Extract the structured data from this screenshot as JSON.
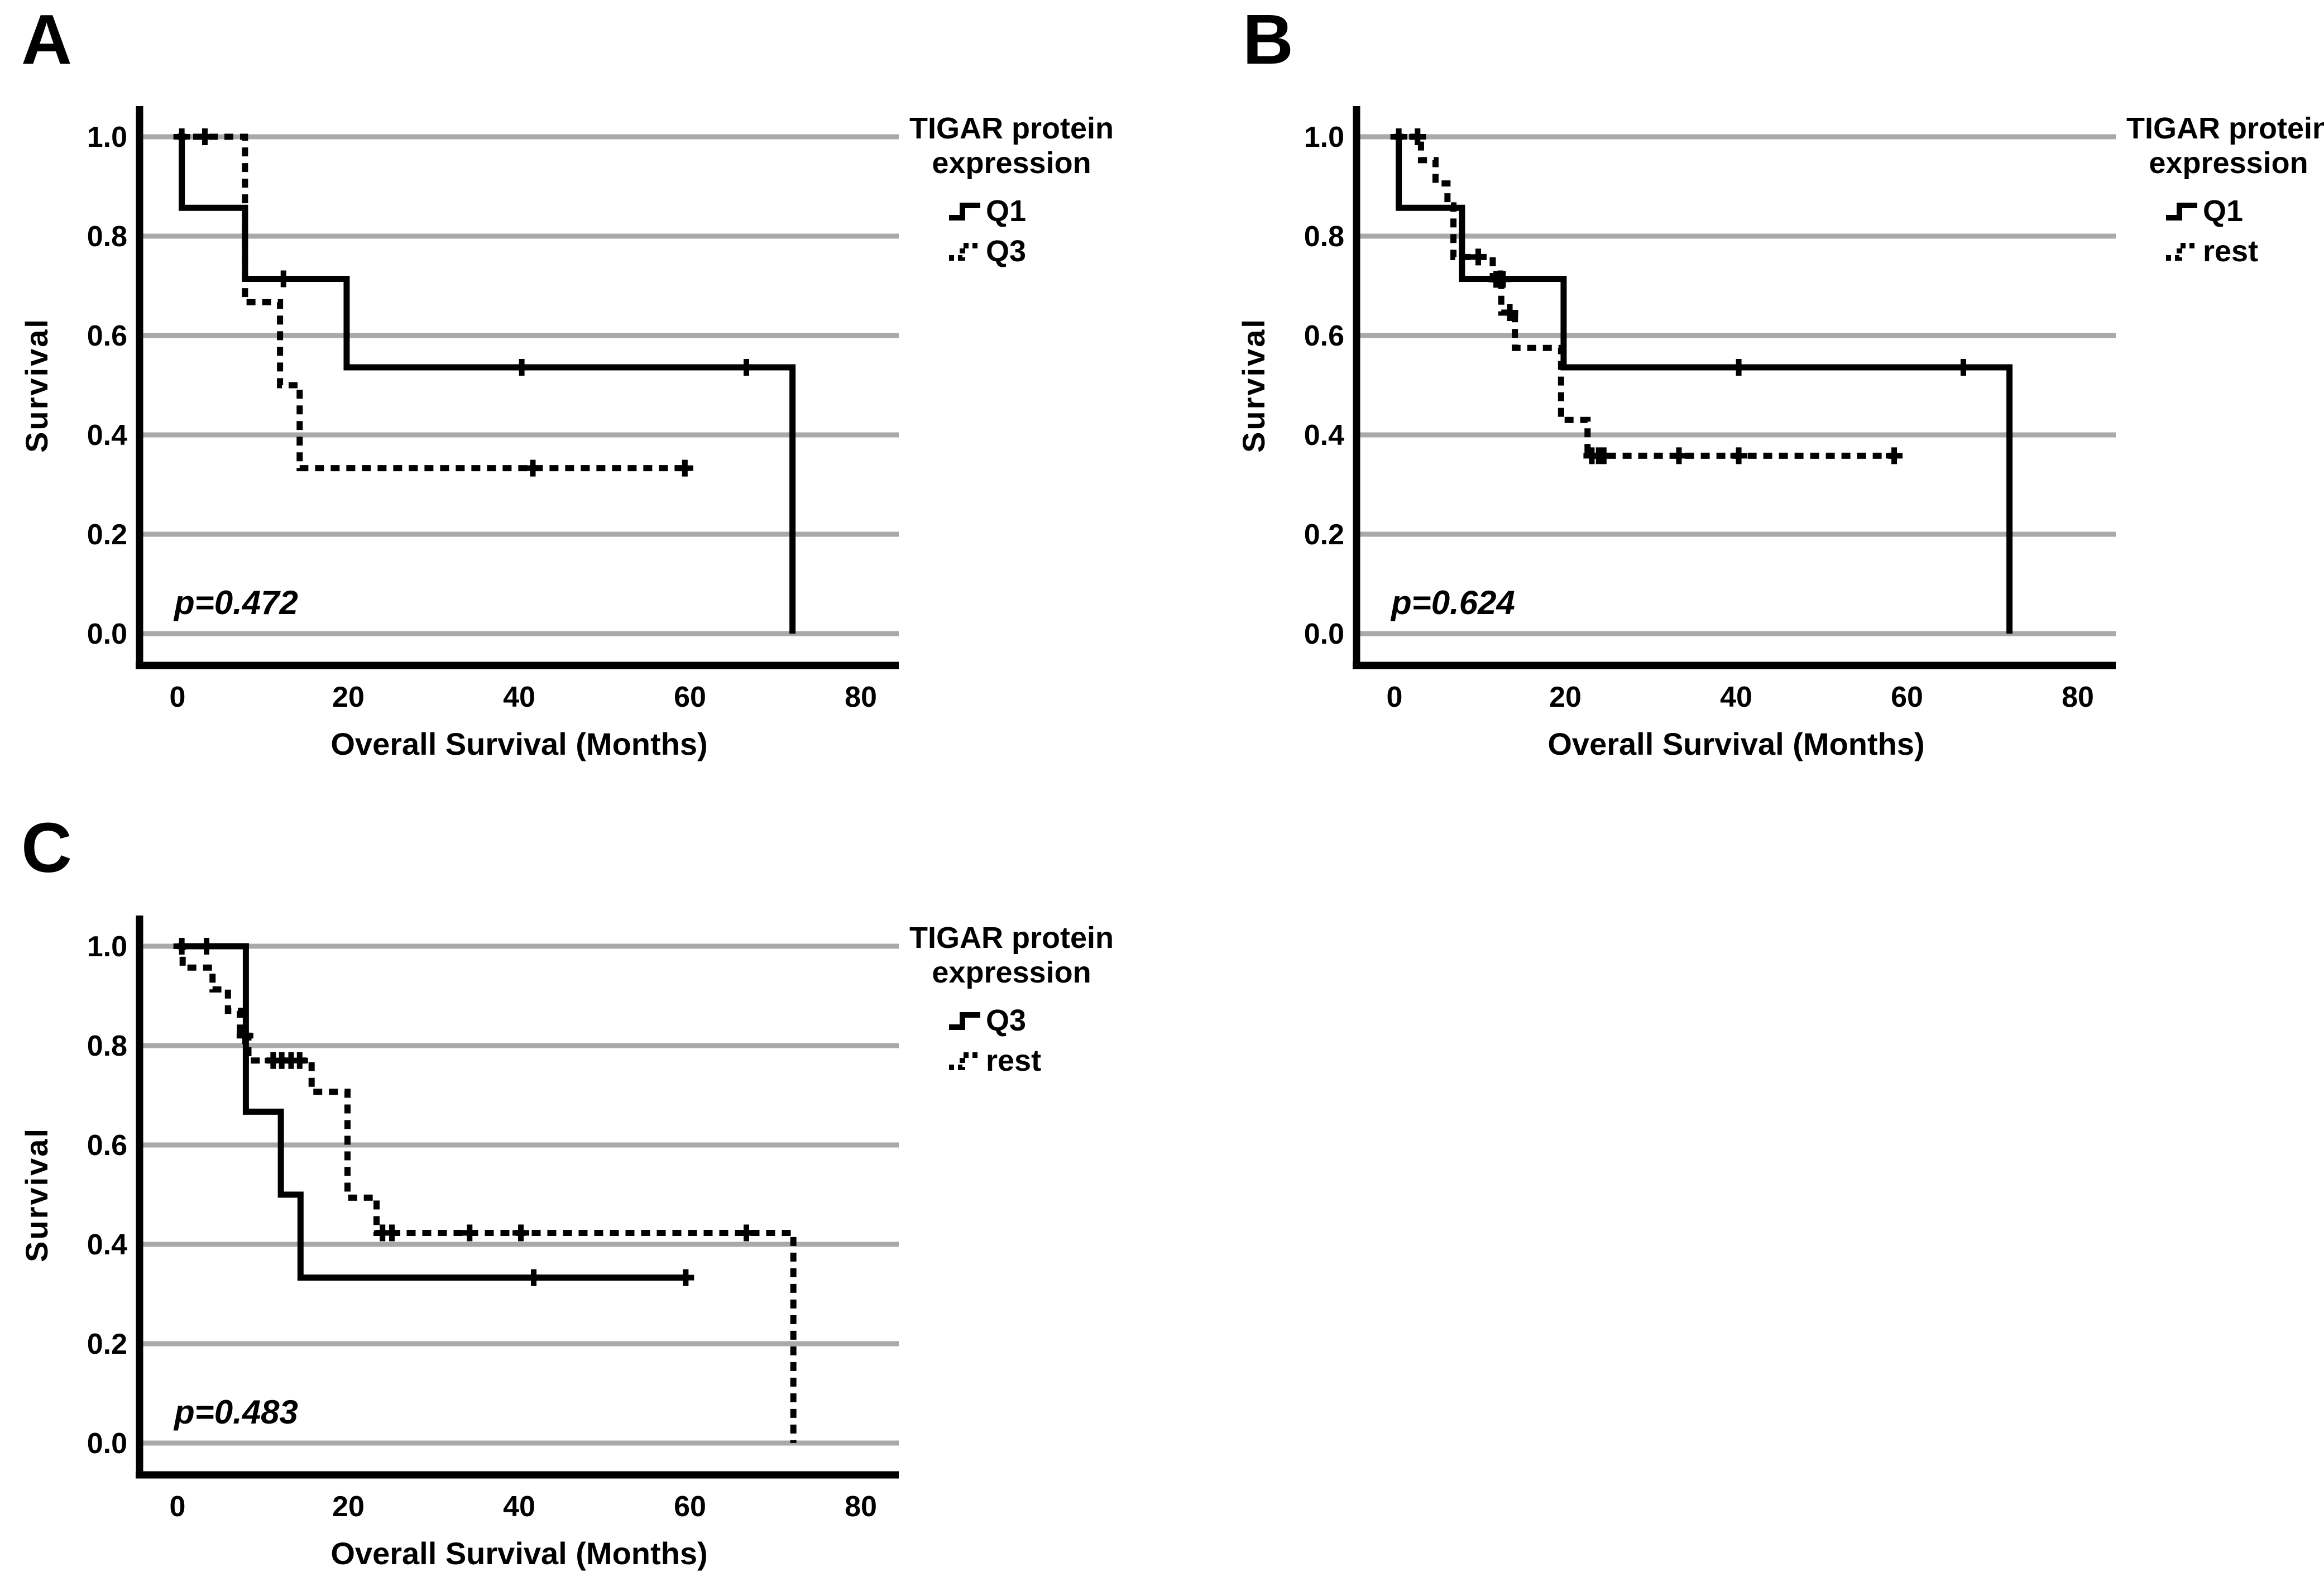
{
  "figure": {
    "background_color": "#ffffff",
    "grid_color": "#a9a9a9",
    "axis_color": "#000000",
    "curve_color": "#000000"
  },
  "chart_data": [
    {
      "panel_letter": "A",
      "type": "line",
      "subtype": "kaplan_meier_step",
      "title": "",
      "xlabel": "Overall Survival (Months)",
      "ylabel": "Survival",
      "x_ticks": [
        "0",
        "20",
        "40",
        "60",
        "80"
      ],
      "y_ticks": [
        "1.0",
        "0.8",
        "0.6",
        "0.4",
        "0.2",
        "0.0"
      ],
      "x_range": [
        0,
        84
      ],
      "y_range": [
        0,
        1
      ],
      "grid": "horizontal",
      "p_value": "p=0.472",
      "legend": {
        "position": "right",
        "title_lines": [
          "TIGAR protein",
          "expression"
        ],
        "items": [
          {
            "label": "Q1",
            "line_style": "solid"
          },
          {
            "label": "Q3",
            "line_style": "dashed"
          }
        ]
      },
      "series": [
        {
          "name": "Q1",
          "line_style": "solid",
          "color": "#000000",
          "steps": [
            [
              0,
              1.0
            ],
            [
              0.5,
              0.857
            ],
            [
              7.9,
              0.714
            ],
            [
              19.8,
              0.536
            ],
            [
              72,
              0.0
            ]
          ],
          "end_time": 72,
          "censors": [
            [
              12.4,
              0.714
            ],
            [
              40.3,
              0.536
            ],
            [
              66.6,
              0.536
            ]
          ]
        },
        {
          "name": "Q3",
          "line_style": "dashed",
          "color": "#000000",
          "steps": [
            [
              0,
              1.0
            ],
            [
              7.9,
              0.667
            ],
            [
              12.0,
              0.5
            ],
            [
              14.3,
              0.333
            ]
          ],
          "end_time": 59.4,
          "censors": [
            [
              0.5,
              1.0
            ],
            [
              3.2,
              1.0
            ],
            [
              41.6,
              0.333
            ],
            [
              59.4,
              0.333
            ]
          ]
        }
      ]
    },
    {
      "panel_letter": "B",
      "type": "line",
      "subtype": "kaplan_meier_step",
      "title": "",
      "xlabel": "Overall Survival (Months)",
      "ylabel": "Survival",
      "x_ticks": [
        "0",
        "20",
        "40",
        "60",
        "80"
      ],
      "y_ticks": [
        "1.0",
        "0.8",
        "0.6",
        "0.4",
        "0.2",
        "0.0"
      ],
      "x_range": [
        0,
        84
      ],
      "y_range": [
        0,
        1
      ],
      "grid": "horizontal",
      "p_value": "p=0.624",
      "legend": {
        "position": "right",
        "title_lines": [
          "TIGAR protein",
          "expression"
        ],
        "items": [
          {
            "label": "Q1",
            "line_style": "solid"
          },
          {
            "label": "rest",
            "line_style": "dashed"
          }
        ]
      },
      "series": [
        {
          "name": "Q1",
          "line_style": "solid",
          "color": "#000000",
          "steps": [
            [
              0,
              1.0
            ],
            [
              0.5,
              0.857
            ],
            [
              7.9,
              0.714
            ],
            [
              19.8,
              0.536
            ],
            [
              72,
              0.0
            ]
          ],
          "end_time": 72,
          "censors": [
            [
              12.4,
              0.714
            ],
            [
              40.3,
              0.536
            ],
            [
              66.6,
              0.536
            ]
          ]
        },
        {
          "name": "rest",
          "line_style": "dashed",
          "color": "#000000",
          "steps": [
            [
              0,
              1.0
            ],
            [
              3.1,
              0.953
            ],
            [
              4.8,
              0.906
            ],
            [
              6.2,
              0.862
            ],
            [
              6.9,
              0.758
            ],
            [
              11.5,
              0.713
            ],
            [
              12.5,
              0.646
            ],
            [
              14.1,
              0.575
            ],
            [
              19.5,
              0.43
            ],
            [
              22.6,
              0.358
            ]
          ],
          "end_time": 58.5,
          "censors": [
            [
              0.5,
              1.0
            ],
            [
              2.7,
              1.0
            ],
            [
              9.8,
              0.758
            ],
            [
              11.9,
              0.713
            ],
            [
              12.7,
              0.713
            ],
            [
              13.5,
              0.646
            ],
            [
              23.1,
              0.358
            ],
            [
              23.9,
              0.358
            ],
            [
              24.5,
              0.358
            ],
            [
              33.3,
              0.358
            ],
            [
              40.3,
              0.358
            ],
            [
              58.5,
              0.358
            ]
          ]
        }
      ]
    },
    {
      "panel_letter": "C",
      "type": "line",
      "subtype": "kaplan_meier_step",
      "title": "",
      "xlabel": "Overall Survival (Months)",
      "ylabel": "Survival",
      "x_ticks": [
        "0",
        "20",
        "40",
        "60",
        "80"
      ],
      "y_ticks": [
        "1.0",
        "0.8",
        "0.6",
        "0.4",
        "0.2",
        "0.0"
      ],
      "x_range": [
        0,
        84
      ],
      "y_range": [
        0,
        1
      ],
      "grid": "horizontal",
      "p_value": "p=0.483",
      "legend": {
        "position": "right",
        "title_lines": [
          "TIGAR protein",
          "expression"
        ],
        "items": [
          {
            "label": "Q3",
            "line_style": "solid"
          },
          {
            "label": "rest",
            "line_style": "dashed"
          }
        ]
      },
      "series": [
        {
          "name": "Q3",
          "line_style": "solid",
          "color": "#000000",
          "steps": [
            [
              0,
              1.0
            ],
            [
              8.0,
              0.667
            ],
            [
              12.1,
              0.5
            ],
            [
              14.4,
              0.333
            ]
          ],
          "end_time": 59.5,
          "censors": [
            [
              0.5,
              1.0
            ],
            [
              3.4,
              1.0
            ],
            [
              41.7,
              0.333
            ],
            [
              59.5,
              0.333
            ]
          ]
        },
        {
          "name": "rest",
          "line_style": "dashed",
          "color": "#000000",
          "steps": [
            [
              0,
              1.0
            ],
            [
              0.6,
              0.957
            ],
            [
              4.1,
              0.913
            ],
            [
              5.9,
              0.87
            ],
            [
              7.3,
              0.82
            ],
            [
              8.3,
              0.77
            ],
            [
              15.7,
              0.707
            ],
            [
              19.9,
              0.494
            ],
            [
              23.3,
              0.423
            ],
            [
              72.1,
              0.0
            ]
          ],
          "end_time": 72.1,
          "censors": [
            [
              7.9,
              0.82
            ],
            [
              11.2,
              0.77
            ],
            [
              12.2,
              0.77
            ],
            [
              13.3,
              0.77
            ],
            [
              14.3,
              0.77
            ],
            [
              24.0,
              0.423
            ],
            [
              25.1,
              0.423
            ],
            [
              34.2,
              0.423
            ],
            [
              40.2,
              0.423
            ],
            [
              66.6,
              0.423
            ]
          ]
        }
      ]
    }
  ]
}
